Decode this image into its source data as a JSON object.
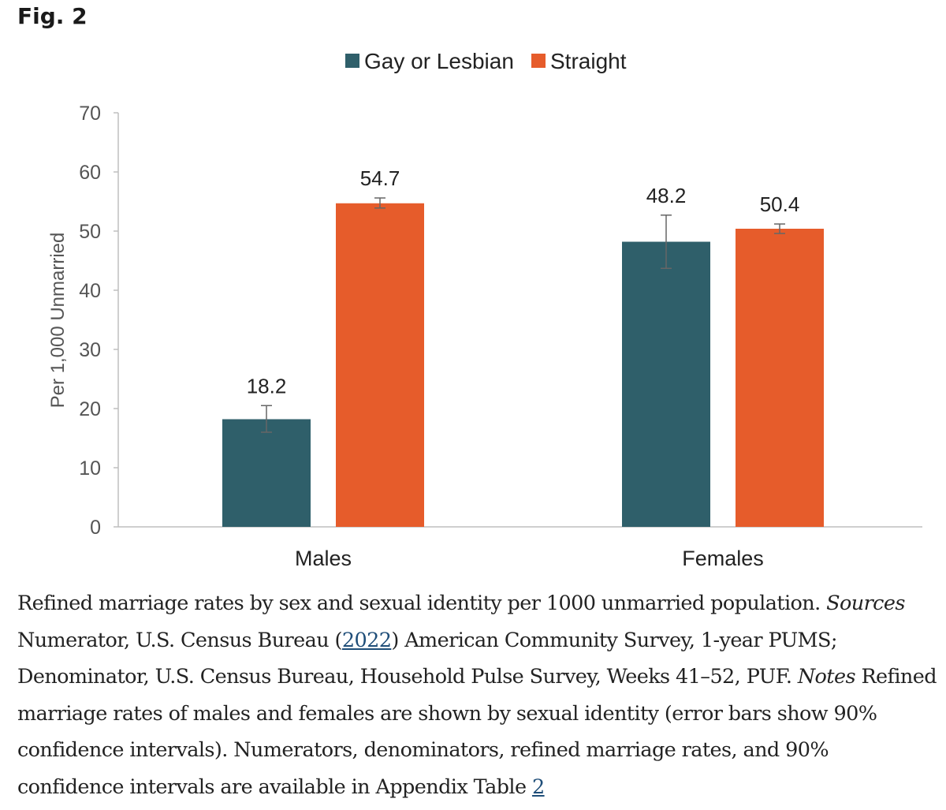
{
  "figure": {
    "label": "Fig. 2"
  },
  "colors": {
    "gay_or_lesbian": "#2f5f6a",
    "straight": "#e65c2b",
    "axis": "#bfbfbf",
    "text": "#333333",
    "link": "#1f4e79"
  },
  "chart_data": {
    "type": "bar",
    "categories": [
      "Males",
      "Females"
    ],
    "series": [
      {
        "name": "Gay or Lesbian",
        "values": [
          18.2,
          48.2
        ],
        "ci_low": [
          16.0,
          43.7
        ],
        "ci_high": [
          20.5,
          52.7
        ]
      },
      {
        "name": "Straight",
        "values": [
          54.7,
          50.4
        ],
        "ci_low": [
          53.9,
          49.6
        ],
        "ci_high": [
          55.6,
          51.2
        ]
      }
    ],
    "ylabel": "Per 1,000 Unmarried",
    "xlabel": "",
    "ylim": [
      0,
      70
    ],
    "yticks": [
      0,
      10,
      20,
      30,
      40,
      50,
      60,
      70
    ],
    "legend_position": "top-center",
    "grid": false
  },
  "caption": {
    "text1": "Refined marriage rates by sex and sexual identity per 1000 unmarried population. ",
    "sources_label": "Sources",
    "text2": " Numerator, U.S. Census Bureau (",
    "ref_year": "2022",
    "text3": ") American Community Survey, 1-year PUMS; Denominator, U.S. Census Bureau, Household Pulse Survey, Weeks 41–52, PUF. ",
    "notes_label": "Notes",
    "text4": " Refined marriage rates of males and females are shown by sexual identity (error bars show 90% confidence intervals). Numerators, denominators, refined marriage rates, and 90% confidence intervals are available in Appendix Table ",
    "table_ref": "2"
  }
}
